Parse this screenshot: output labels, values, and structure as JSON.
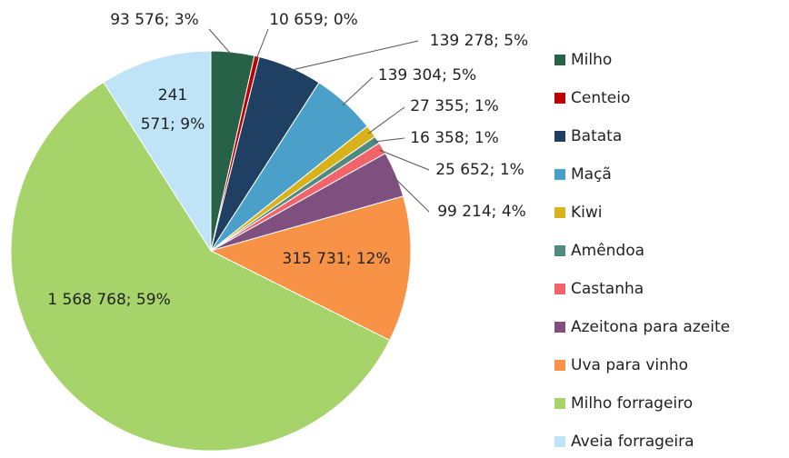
{
  "chart_data": {
    "type": "pie",
    "categories": [
      "Milho",
      "Centeio",
      "Batata",
      "Maçã",
      "Kiwi",
      "Amêndoa",
      "Castanha",
      "Azeitona para azeite",
      "Uva para vinho",
      "Milho forrageiro",
      "Aveia forrageira"
    ],
    "values": [
      93576,
      10659,
      139278,
      139304,
      27355,
      16358,
      25652,
      99214,
      315731,
      1568768,
      241571
    ],
    "value_labels": [
      "93 576; 3%",
      "10 659; 0%",
      "139 278; 5%",
      "139 304; 5%",
      "27 355; 1%",
      "16 358; 1%",
      "25 652; 1%",
      "99 214; 4%",
      "315 731; 12%",
      "1 568 768; 59%",
      "241 571; 9%"
    ],
    "colors": [
      "#276148",
      "#c00000",
      "#1f3f63",
      "#4aa0c8",
      "#d9b21b",
      "#4f8a80",
      "#f0646a",
      "#7f4f7f",
      "#f79246",
      "#a6d46a",
      "#bfe3f7"
    ],
    "legend": "right"
  }
}
